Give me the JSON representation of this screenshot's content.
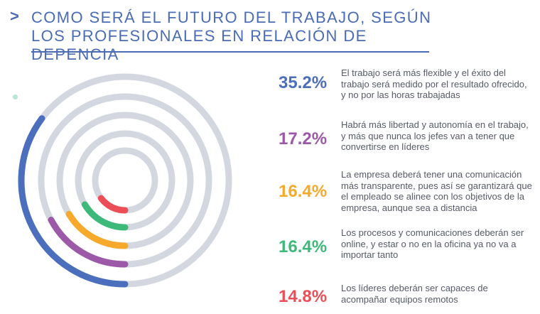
{
  "header": {
    "chevron": ">",
    "title": "COMO SERÁ EL FUTURO DEL TRABAJO, SEGÚN LOS PROFESIONALES EN RELACIÓN DE DEPENCIA"
  },
  "chart_data": {
    "type": "radial-bar",
    "unit": "%",
    "track_color": "#d3d7df",
    "series": [
      {
        "label": "35.2%",
        "value": 35.2,
        "color": "#4b6fbc",
        "text": "El trabajo será más flexible y el éxito del trabajo será medido por el resultado ofrecido, y no por las horas trabajadas"
      },
      {
        "label": "17.2%",
        "value": 17.2,
        "color": "#9b59a8",
        "text": "Habrá más libertad y autonomía en el trabajo, y más que nunca los jefes van a tener que convertirse en líderes"
      },
      {
        "label": "16.4%",
        "value": 16.4,
        "color": "#f6a92a",
        "text": "La empresa deberá tener una comunicación más transparente, pues así se garantizará que el empleado se alinee con los objetivos de la empresa, aunque sea a distancia"
      },
      {
        "label": "16.4%",
        "value": 16.4,
        "color": "#3db97a",
        "text": "Los procesos y comunicaciones deberán ser online, y estar o no en la oficina ya no va a importar tanto"
      },
      {
        "label": "14.8%",
        "value": 14.8,
        "color": "#ec4e57",
        "text": "Los líderes deberán ser capaces de acompañar equipos remotos"
      }
    ]
  }
}
